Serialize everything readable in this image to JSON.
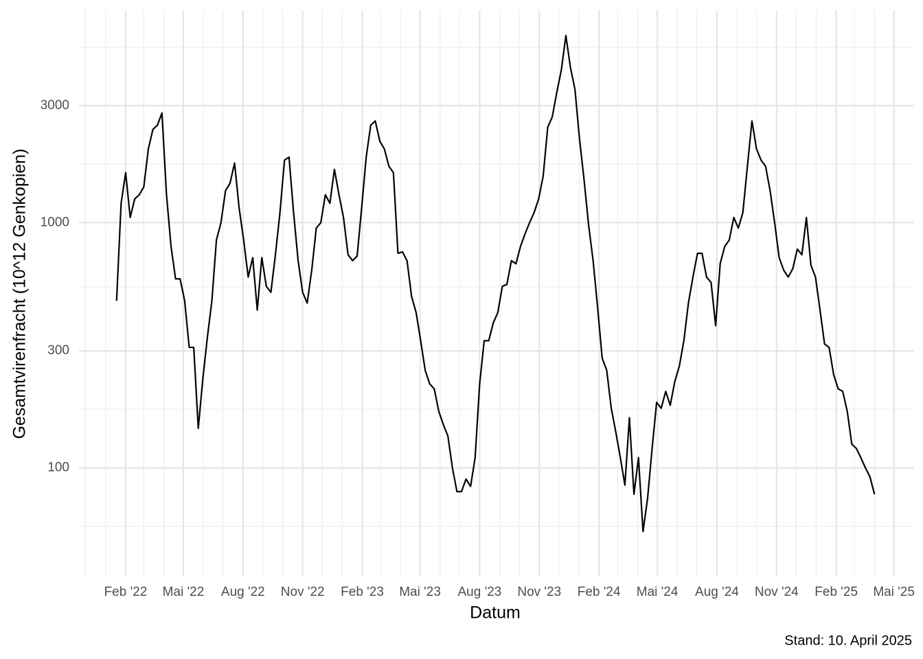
{
  "chart_data": {
    "type": "line",
    "y_label": "Gesamtvirenfracht (10^12 Genkopien)",
    "x_label": "Datum",
    "caption": "Stand: 10. April 2025",
    "log_y": true,
    "grid": true,
    "color": "#000000",
    "xlim": [
      "2021-11-21",
      "2025-05-31"
    ],
    "xticks": [
      {
        "value": "2022-02",
        "label": "Feb '22"
      },
      {
        "value": "2022-05",
        "label": "Mai '22"
      },
      {
        "value": "2022-08",
        "label": "Aug '22"
      },
      {
        "value": "2022-11",
        "label": "Nov '22"
      },
      {
        "value": "2023-02",
        "label": "Feb '23"
      },
      {
        "value": "2023-05",
        "label": "Mai '23"
      },
      {
        "value": "2023-08",
        "label": "Aug '23"
      },
      {
        "value": "2023-11",
        "label": "Nov '23"
      },
      {
        "value": "2024-02",
        "label": "Feb '24"
      },
      {
        "value": "2024-05",
        "label": "Mai '24"
      },
      {
        "value": "2024-08",
        "label": "Aug '24"
      },
      {
        "value": "2024-11",
        "label": "Nov '24"
      },
      {
        "value": "2025-02",
        "label": "Feb '25"
      },
      {
        "value": "2025-05",
        "label": "Mai '25"
      }
    ],
    "ylim": [
      36,
      7350
    ],
    "yticks": [
      100,
      300,
      1000,
      3000
    ],
    "x": [
      "2022-01-18",
      "2022-01-25",
      "2022-02-01",
      "2022-02-08",
      "2022-02-15",
      "2022-02-22",
      "2022-03-01",
      "2022-03-08",
      "2022-03-15",
      "2022-03-22",
      "2022-03-29",
      "2022-04-05",
      "2022-04-12",
      "2022-04-19",
      "2022-04-26",
      "2022-05-03",
      "2022-05-10",
      "2022-05-17",
      "2022-05-24",
      "2022-05-31",
      "2022-06-07",
      "2022-06-14",
      "2022-06-21",
      "2022-06-28",
      "2022-07-05",
      "2022-07-12",
      "2022-07-19",
      "2022-07-26",
      "2022-08-02",
      "2022-08-09",
      "2022-08-16",
      "2022-08-23",
      "2022-08-30",
      "2022-09-06",
      "2022-09-13",
      "2022-09-20",
      "2022-09-27",
      "2022-10-04",
      "2022-10-11",
      "2022-10-18",
      "2022-10-25",
      "2022-11-01",
      "2022-11-08",
      "2022-11-15",
      "2022-11-22",
      "2022-11-29",
      "2022-12-06",
      "2022-12-13",
      "2022-12-20",
      "2022-12-27",
      "2023-01-03",
      "2023-01-10",
      "2023-01-17",
      "2023-01-24",
      "2023-01-31",
      "2023-02-07",
      "2023-02-14",
      "2023-02-21",
      "2023-02-28",
      "2023-03-07",
      "2023-03-14",
      "2023-03-21",
      "2023-03-28",
      "2023-04-04",
      "2023-04-11",
      "2023-04-18",
      "2023-04-25",
      "2023-05-02",
      "2023-05-09",
      "2023-05-16",
      "2023-05-23",
      "2023-05-30",
      "2023-06-06",
      "2023-06-13",
      "2023-06-20",
      "2023-06-27",
      "2023-07-04",
      "2023-07-11",
      "2023-07-18",
      "2023-07-25",
      "2023-08-01",
      "2023-08-08",
      "2023-08-15",
      "2023-08-22",
      "2023-08-29",
      "2023-09-05",
      "2023-09-12",
      "2023-09-19",
      "2023-09-26",
      "2023-10-03",
      "2023-10-10",
      "2023-10-17",
      "2023-10-24",
      "2023-10-31",
      "2023-11-07",
      "2023-11-14",
      "2023-11-21",
      "2023-11-28",
      "2023-12-05",
      "2023-12-12",
      "2023-12-19",
      "2023-12-26",
      "2024-01-02",
      "2024-01-09",
      "2024-01-16",
      "2024-01-23",
      "2024-01-30",
      "2024-02-06",
      "2024-02-13",
      "2024-02-20",
      "2024-02-27",
      "2024-03-05",
      "2024-03-12",
      "2024-03-19",
      "2024-03-26",
      "2024-04-02",
      "2024-04-09",
      "2024-04-16",
      "2024-04-23",
      "2024-04-30",
      "2024-05-07",
      "2024-05-14",
      "2024-05-21",
      "2024-05-28",
      "2024-06-04",
      "2024-06-11",
      "2024-06-18",
      "2024-06-25",
      "2024-07-02",
      "2024-07-09",
      "2024-07-16",
      "2024-07-23",
      "2024-07-30",
      "2024-08-06",
      "2024-08-13",
      "2024-08-20",
      "2024-08-27",
      "2024-09-03",
      "2024-09-10",
      "2024-09-17",
      "2024-09-24",
      "2024-10-01",
      "2024-10-08",
      "2024-10-15",
      "2024-10-22",
      "2024-10-29",
      "2024-11-05",
      "2024-11-12",
      "2024-11-19",
      "2024-11-26",
      "2024-12-03",
      "2024-12-10",
      "2024-12-17",
      "2024-12-24",
      "2024-12-31",
      "2025-01-07",
      "2025-01-14",
      "2025-01-21",
      "2025-01-28",
      "2025-02-04",
      "2025-02-11",
      "2025-02-18",
      "2025-02-25",
      "2025-03-04",
      "2025-03-11",
      "2025-03-18",
      "2025-03-25",
      "2025-04-01"
    ],
    "values": [
      480,
      1200,
      1600,
      1050,
      1250,
      1300,
      1400,
      2000,
      2400,
      2500,
      2800,
      1300,
      800,
      590,
      590,
      480,
      310,
      310,
      145,
      230,
      340,
      480,
      850,
      1000,
      1350,
      1450,
      1750,
      1150,
      850,
      600,
      720,
      440,
      720,
      550,
      520,
      740,
      1100,
      1800,
      1850,
      1100,
      700,
      520,
      470,
      640,
      950,
      1000,
      1300,
      1200,
      1650,
      1300,
      1050,
      740,
      700,
      730,
      1150,
      1850,
      2500,
      2600,
      2150,
      2000,
      1700,
      1600,
      750,
      760,
      700,
      500,
      430,
      330,
      250,
      220,
      210,
      170,
      150,
      135,
      100,
      80,
      80,
      90,
      84,
      110,
      220,
      330,
      330,
      390,
      430,
      550,
      560,
      700,
      680,
      800,
      900,
      1000,
      1100,
      1250,
      1550,
      2450,
      2700,
      3400,
      4200,
      5800,
      4300,
      3500,
      2200,
      1500,
      980,
      700,
      450,
      280,
      250,
      175,
      140,
      110,
      85,
      160,
      78,
      110,
      55,
      75,
      120,
      185,
      175,
      205,
      180,
      225,
      260,
      330,
      470,
      600,
      750,
      750,
      600,
      570,
      380,
      680,
      800,
      850,
      1050,
      950,
      1100,
      1700,
      2600,
      2000,
      1800,
      1700,
      1350,
      1000,
      720,
      640,
      600,
      650,
      780,
      740,
      1050,
      670,
      600,
      440,
      320,
      310,
      240,
      210,
      205,
      170,
      125,
      120,
      110,
      100,
      92,
      78
    ]
  }
}
